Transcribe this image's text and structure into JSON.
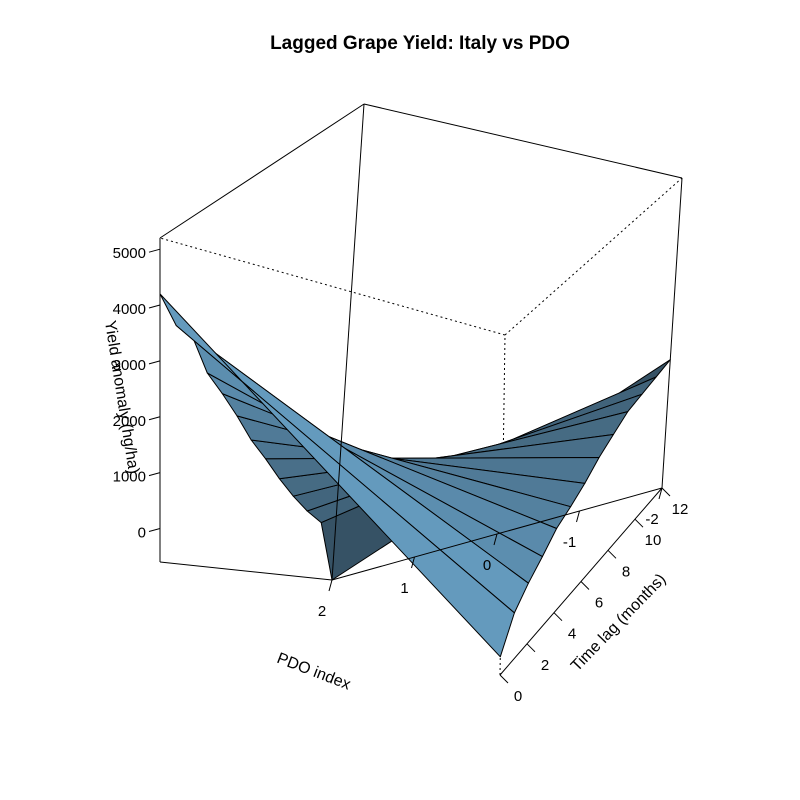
{
  "chart_data": {
    "type": "surface3d",
    "title": "Lagged Grape Yield: Italy vs PDO",
    "xlabel": "PDO index",
    "ylabel": "Time lag (months)",
    "zlabel": "Yield anomaly (hg/ha)",
    "xlim": [
      -2,
      2
    ],
    "ylim": [
      0,
      12
    ],
    "zlim": [
      -600,
      5200
    ],
    "x_ticks": [
      "-2",
      "-1",
      "0",
      "1",
      "2"
    ],
    "y_ticks": [
      "0",
      "2",
      "4",
      "6",
      "8",
      "10",
      "12"
    ],
    "z_ticks": [
      "0",
      "1000",
      "2000",
      "3000",
      "4000",
      "5000"
    ],
    "pdo": [
      2,
      -2
    ],
    "lag": [
      0,
      1,
      2,
      3,
      4,
      5,
      6,
      7,
      8,
      9,
      10,
      11,
      12
    ],
    "surface": [
      [
        4200,
        -290
      ],
      [
        3500,
        200
      ],
      [
        3200,
        450
      ],
      [
        2500,
        650
      ],
      [
        2100,
        880
      ],
      [
        1700,
        1000
      ],
      [
        1300,
        1150
      ],
      [
        1000,
        1350
      ],
      [
        700,
        1500
      ],
      [
        450,
        1650
      ],
      [
        250,
        1700
      ],
      [
        100,
        1750
      ],
      [
        -600,
        1800
      ]
    ],
    "color_light": "#6aa3c9",
    "color_dark": "#1e2d37"
  }
}
